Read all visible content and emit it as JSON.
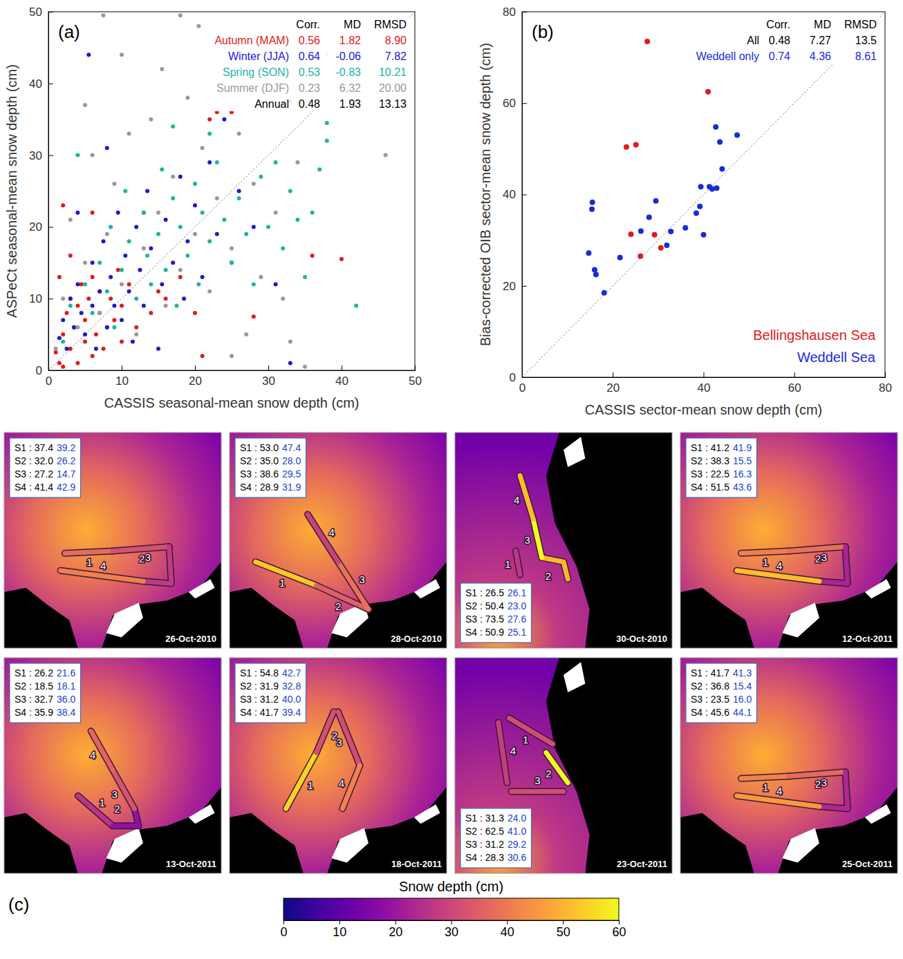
{
  "chart_data": [
    {
      "type": "scatter",
      "panel_label": "(a)",
      "xlabel": "CASSIS seasonal-mean snow depth (cm)",
      "ylabel": "ASPeCt seasonal-mean snow depth (cm)",
      "xlim": [
        0,
        50
      ],
      "ylim": [
        0,
        50
      ],
      "xticks": [
        0,
        10,
        20,
        30,
        40,
        50
      ],
      "yticks": [
        0,
        10,
        20,
        30,
        40,
        50
      ],
      "legend": "top right",
      "stats_columns": [
        "Corr.",
        "MD",
        "RMSD"
      ],
      "series": [
        {
          "name": "Autumn (MAM)",
          "color": "#e3191c",
          "stats": [
            "0.56",
            "1.82",
            "8.90"
          ],
          "x": [
            1,
            1.5,
            2,
            2,
            2.5,
            3,
            3,
            3.5,
            4,
            4,
            4.5,
            5,
            5,
            5.5,
            6,
            6,
            6.5,
            7,
            7,
            7.5,
            8,
            8.5,
            9,
            9.5,
            10,
            10,
            11,
            12,
            13,
            14,
            15,
            16,
            18,
            20,
            21,
            22,
            23,
            25,
            28,
            33,
            36,
            40,
            2,
            1.5,
            3,
            6
          ],
          "values": [
            2.5,
            1,
            0.5,
            5,
            8,
            10,
            3,
            6,
            1,
            9,
            12,
            4,
            7,
            10,
            2,
            13,
            5,
            8,
            11,
            3,
            6,
            10,
            7,
            14,
            4,
            9,
            12,
            6,
            22,
            8,
            11,
            10,
            13,
            8,
            2,
            35,
            36,
            36,
            7.5,
            37.5,
            16,
            15.5,
            23,
            13,
            16,
            22
          ]
        },
        {
          "name": "Winter (JJA)",
          "color": "#1a1ad2",
          "stats": [
            "0.64",
            "-0.06",
            "7.82"
          ],
          "x": [
            1.5,
            2,
            2.5,
            3,
            3.5,
            4,
            4.5,
            5,
            5.5,
            6,
            6,
            6.5,
            7,
            7.5,
            8,
            8.5,
            9,
            9.5,
            10,
            10.5,
            11,
            11.5,
            12,
            12.5,
            13,
            13.5,
            14,
            15,
            15.5,
            16,
            17,
            18,
            18.5,
            19,
            20,
            21,
            22,
            23,
            24,
            25,
            26,
            28,
            31,
            33,
            4,
            8
          ],
          "values": [
            4.5,
            7,
            3,
            10,
            6,
            12,
            8,
            5,
            44,
            15,
            9,
            3,
            11,
            18,
            6,
            13,
            9,
            22,
            7,
            16,
            11,
            4,
            20,
            14,
            9,
            25,
            17,
            3,
            12,
            21,
            15,
            27,
            10,
            18,
            23,
            13,
            29,
            19,
            35,
            15,
            25,
            20,
            12,
            1,
            22,
            31
          ]
        },
        {
          "name": "Spring (SON)",
          "color": "#1fb3a3",
          "stats": [
            "0.53",
            "-0.83",
            "10.21"
          ],
          "x": [
            2,
            3,
            4,
            5,
            6,
            7,
            8,
            8.5,
            9,
            10,
            10.5,
            11,
            12,
            13,
            13.5,
            14,
            15,
            15.5,
            16,
            17,
            17.5,
            18,
            19,
            20,
            20.5,
            21,
            22,
            23,
            24,
            25,
            26,
            27,
            28,
            29,
            30,
            31,
            32,
            33,
            34,
            35,
            36,
            37,
            38,
            38,
            42,
            22,
            17
          ],
          "values": [
            4,
            9,
            30,
            12,
            8,
            15,
            11,
            20,
            6,
            14,
            25,
            18,
            10,
            22,
            16,
            12,
            19,
            28,
            14,
            24,
            9,
            20,
            16,
            26,
            12,
            22,
            18,
            29,
            21,
            15,
            24,
            19,
            12,
            27,
            20,
            29,
            17,
            25,
            21,
            13,
            22,
            28,
            34.5,
            32,
            9,
            33,
            34
          ]
        },
        {
          "name": "Summer (DJF)",
          "color": "#999999",
          "stats": [
            "0.23",
            "6.32",
            "20.00"
          ],
          "x": [
            1,
            2,
            3,
            4,
            5,
            5,
            6,
            7,
            7.5,
            8,
            9,
            10,
            11,
            12,
            13,
            14,
            15,
            15.5,
            16,
            17,
            18,
            19,
            20,
            20.5,
            21,
            22,
            23,
            24,
            25,
            26,
            27,
            28,
            29,
            30,
            31,
            32,
            33,
            34,
            35,
            36,
            46,
            38,
            18,
            10,
            25
          ],
          "values": [
            3,
            10,
            21,
            6,
            37,
            15,
            30,
            8,
            49.5,
            19,
            26,
            12,
            33,
            5,
            17,
            35,
            22,
            42,
            9,
            27,
            14,
            38,
            19,
            48,
            31,
            11,
            24,
            45,
            17,
            33,
            5,
            26,
            13,
            41,
            22,
            10,
            4,
            29,
            0.5,
            38,
            30,
            44,
            49.5,
            44,
            2
          ]
        }
      ],
      "summary_rows": [
        {
          "name": "Annual",
          "color": "#000000",
          "stats": [
            "0.48",
            "1.93",
            "13.13"
          ]
        }
      ]
    },
    {
      "type": "scatter",
      "panel_label": "(b)",
      "xlabel": "CASSIS sector-mean snow depth (cm)",
      "ylabel": "Bias-corrected OIB sector-mean snow depth (cm)",
      "xlim": [
        0,
        80
      ],
      "ylim": [
        0,
        80
      ],
      "xticks": [
        0,
        20,
        40,
        60,
        80
      ],
      "yticks": [
        0,
        20,
        40,
        60,
        80
      ],
      "legend": "bottom right",
      "stats_columns": [
        "Corr.",
        "MD",
        "RMSD"
      ],
      "series": [
        {
          "name": "Bellingshausen Sea",
          "color": "#e3191c",
          "x": [
            26.1,
            23.0,
            27.6,
            25.1,
            24.0,
            41.0,
            29.2,
            30.6
          ],
          "values": [
            26.5,
            50.4,
            73.5,
            50.9,
            31.3,
            62.5,
            31.2,
            28.3
          ]
        },
        {
          "name": "Weddell Sea",
          "color": "#1a2bd6",
          "x": [
            39.2,
            26.2,
            14.7,
            42.9,
            47.4,
            28.0,
            29.5,
            31.9,
            41.9,
            15.5,
            16.3,
            43.6,
            21.6,
            18.1,
            36.0,
            38.4,
            42.7,
            32.8,
            40.0,
            39.4,
            41.3,
            15.4,
            16.0,
            44.1
          ],
          "values": [
            37.4,
            32.0,
            27.2,
            41.4,
            53.0,
            35.0,
            38.6,
            28.9,
            41.2,
            38.3,
            22.5,
            51.5,
            26.2,
            18.5,
            32.7,
            35.9,
            54.8,
            31.9,
            31.2,
            41.7,
            41.7,
            36.8,
            23.5,
            45.6
          ]
        }
      ],
      "summary_rows": [
        {
          "name": "All",
          "color": "#000000",
          "stats": [
            "0.48",
            "7.27",
            "13.5"
          ]
        },
        {
          "name": "Weddell only",
          "color": "#1a2bd6",
          "stats": [
            "0.74",
            "4.36",
            "8.61"
          ]
        }
      ]
    },
    {
      "type": "map",
      "panel_label": "(c)",
      "separator": " : ",
      "colors": [
        "#000000",
        "#1a3fd0"
      ],
      "colorbar": {
        "label": "Snow depth (cm)",
        "range": [
          0,
          60
        ],
        "ticks": [
          0,
          10,
          20,
          30,
          40,
          50,
          60
        ]
      },
      "panels": [
        {
          "date": "26-Oct-2010",
          "segments": [
            {
              "name": "S1",
              "track_label": "1",
              "values": [
                37.4,
                39.2
              ],
              "value_labels": [
                "37.4",
                "39.2"
              ]
            },
            {
              "name": "S2",
              "track_label": "2",
              "values": [
                32.0,
                26.2
              ],
              "value_labels": [
                "32.0",
                "26.2"
              ]
            },
            {
              "name": "S3",
              "track_label": "3",
              "values": [
                27.2,
                14.7
              ],
              "value_labels": [
                "27.2",
                "14.7"
              ]
            },
            {
              "name": "S4",
              "track_label": "4",
              "values": [
                41.4,
                42.9
              ],
              "value_labels": [
                "41.4",
                "42.9"
              ]
            }
          ]
        },
        {
          "date": "28-Oct-2010",
          "segments": [
            {
              "name": "S1",
              "track_label": "1",
              "values": [
                53.0,
                47.4
              ],
              "value_labels": [
                "53.0",
                "47.4"
              ]
            },
            {
              "name": "S2",
              "track_label": "2",
              "values": [
                35.0,
                28.0
              ],
              "value_labels": [
                "35.0",
                "28.0"
              ]
            },
            {
              "name": "S3",
              "track_label": "3",
              "values": [
                38.6,
                29.5
              ],
              "value_labels": [
                "38.6",
                "29.5"
              ]
            },
            {
              "name": "S4",
              "track_label": "4",
              "values": [
                28.9,
                31.9
              ],
              "value_labels": [
                "28.9",
                "31.9"
              ]
            }
          ]
        },
        {
          "date": "30-Oct-2010",
          "segments": [
            {
              "name": "S1",
              "track_label": "1",
              "values": [
                26.5,
                26.1
              ],
              "value_labels": [
                "26.5",
                "26.1"
              ]
            },
            {
              "name": "S2",
              "track_label": "2",
              "values": [
                50.4,
                23.0
              ],
              "value_labels": [
                "50.4",
                "23.0"
              ]
            },
            {
              "name": "S3",
              "track_label": "3",
              "values": [
                73.5,
                27.6
              ],
              "value_labels": [
                "73.5",
                "27.6"
              ]
            },
            {
              "name": "S4",
              "track_label": "4",
              "values": [
                50.9,
                25.1
              ],
              "value_labels": [
                "50.9",
                "25.1"
              ]
            }
          ]
        },
        {
          "date": "12-Oct-2011",
          "segments": [
            {
              "name": "S1",
              "track_label": "1",
              "values": [
                41.2,
                41.9
              ],
              "value_labels": [
                "41.2",
                "41.9"
              ]
            },
            {
              "name": "S2",
              "track_label": "2",
              "values": [
                38.3,
                15.5
              ],
              "value_labels": [
                "38.3",
                "15.5"
              ]
            },
            {
              "name": "S3",
              "track_label": "3",
              "values": [
                22.5,
                16.3
              ],
              "value_labels": [
                "22.5",
                "16.3"
              ]
            },
            {
              "name": "S4",
              "track_label": "4",
              "values": [
                51.5,
                43.6
              ],
              "value_labels": [
                "51.5",
                "43.6"
              ]
            }
          ]
        },
        {
          "date": "13-Oct-2011",
          "segments": [
            {
              "name": "S1",
              "track_label": "1",
              "values": [
                26.2,
                21.6
              ],
              "value_labels": [
                "26.2",
                "21.6"
              ]
            },
            {
              "name": "S2",
              "track_label": "2",
              "values": [
                18.5,
                18.1
              ],
              "value_labels": [
                "18.5",
                "18.1"
              ]
            },
            {
              "name": "S3",
              "track_label": "3",
              "values": [
                32.7,
                36.0
              ],
              "value_labels": [
                "32.7",
                "36.0"
              ]
            },
            {
              "name": "S4",
              "track_label": "4",
              "values": [
                35.9,
                38.4
              ],
              "value_labels": [
                "35.9",
                "38.4"
              ]
            }
          ]
        },
        {
          "date": "18-Oct-2011",
          "segments": [
            {
              "name": "S1",
              "track_label": "1",
              "values": [
                54.8,
                42.7
              ],
              "value_labels": [
                "54.8",
                "42.7"
              ]
            },
            {
              "name": "S2",
              "track_label": "2",
              "values": [
                31.9,
                32.8
              ],
              "value_labels": [
                "31.9",
                "32.8"
              ]
            },
            {
              "name": "S3",
              "track_label": "3",
              "values": [
                31.2,
                40.0
              ],
              "value_labels": [
                "31.2",
                "40.0"
              ]
            },
            {
              "name": "S4",
              "track_label": "4",
              "values": [
                41.7,
                39.4
              ],
              "value_labels": [
                "41.7",
                "39.4"
              ]
            }
          ]
        },
        {
          "date": "23-Oct-2011",
          "segments": [
            {
              "name": "S1",
              "track_label": "1",
              "values": [
                31.3,
                24.0
              ],
              "value_labels": [
                "31.3",
                "24.0"
              ]
            },
            {
              "name": "S2",
              "track_label": "2",
              "values": [
                62.5,
                41.0
              ],
              "value_labels": [
                "62.5",
                "41.0"
              ]
            },
            {
              "name": "S3",
              "track_label": "3",
              "values": [
                31.2,
                29.2
              ],
              "value_labels": [
                "31.2",
                "29.2"
              ]
            },
            {
              "name": "S4",
              "track_label": "4",
              "values": [
                28.3,
                30.6
              ],
              "value_labels": [
                "28.3",
                "30.6"
              ]
            }
          ]
        },
        {
          "date": "25-Oct-2011",
          "segments": [
            {
              "name": "S1",
              "track_label": "1",
              "values": [
                41.7,
                41.3
              ],
              "value_labels": [
                "41.7",
                "41.3"
              ]
            },
            {
              "name": "S2",
              "track_label": "2",
              "values": [
                36.8,
                15.4
              ],
              "value_labels": [
                "36.8",
                "15.4"
              ]
            },
            {
              "name": "S3",
              "track_label": "3",
              "values": [
                23.5,
                16.0
              ],
              "value_labels": [
                "23.5",
                "16.0"
              ]
            },
            {
              "name": "S4",
              "track_label": "4",
              "values": [
                45.6,
                44.1
              ],
              "value_labels": [
                "45.6",
                "44.1"
              ]
            }
          ]
        }
      ]
    }
  ]
}
